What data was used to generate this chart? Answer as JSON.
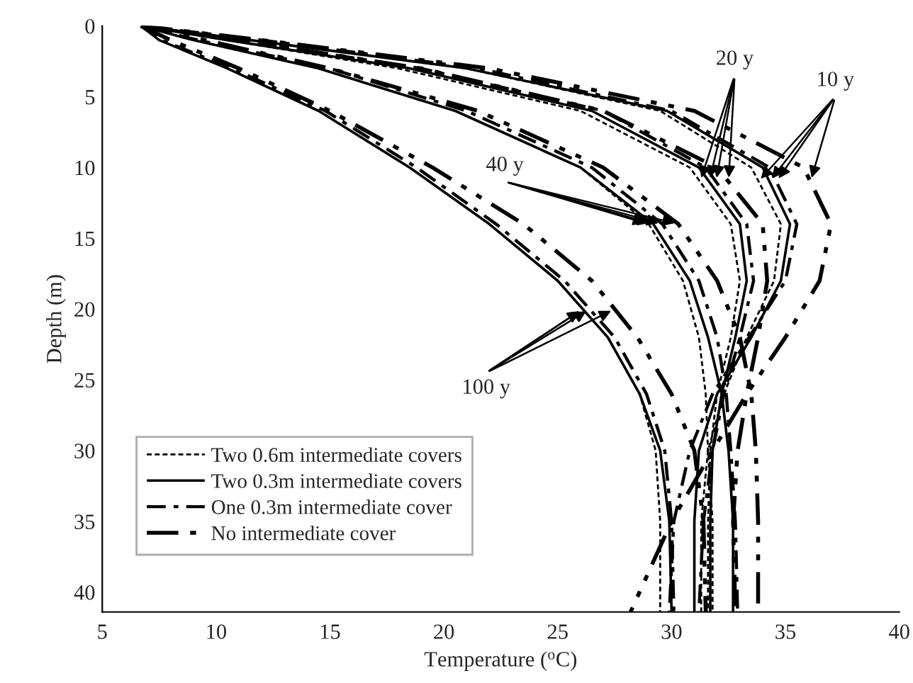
{
  "chart_data": {
    "type": "line",
    "xlabel": "Temperature ($^{o}$C)",
    "ylabel": "Depth (m)",
    "xlim": [
      5,
      40
    ],
    "xticks": [
      5,
      10,
      15,
      20,
      25,
      30,
      35,
      40
    ],
    "ylim": [
      41.4,
      0
    ],
    "yticks": [
      0,
      5,
      10,
      15,
      20,
      25,
      30,
      35,
      40
    ],
    "grid": false,
    "legend": "bottom left",
    "marker": "none",
    "series": [
      {
        "name": "Two 0.6m intermediate covers",
        "color": "#000000",
        "line_style": "dashed",
        "x": [
          6.7,
          11.5,
          21,
          29.5,
          33.5,
          34.8,
          34.5,
          33.3,
          32.3,
          31.6,
          31.3,
          31.3
        ],
        "values": [
          0,
          1,
          3,
          6,
          10,
          14,
          18,
          22,
          26,
          30,
          35,
          41.4
        ]
      },
      {
        "color": "#000000",
        "line_style": "dashed",
        "x": [
          6.7,
          10.5,
          18,
          26,
          30.8,
          32.6,
          33.0,
          32.6,
          32.0,
          31.7,
          31.6,
          31.6
        ],
        "values": [
          0,
          1,
          3,
          6,
          10,
          14,
          18,
          22,
          26,
          30,
          35,
          41.4
        ]
      },
      {
        "color": "#000000",
        "line_style": "dashed",
        "x": [
          6.7,
          9,
          14.5,
          20.5,
          26,
          29.0,
          30.5,
          31.2,
          31.5,
          31.6,
          31.8,
          31.8
        ],
        "values": [
          0,
          1,
          3,
          6,
          10,
          14,
          18,
          22,
          26,
          30,
          35,
          41.4
        ]
      },
      {
        "color": "#000000",
        "line_style": "dashed",
        "x": [
          6.7,
          7.5,
          10.5,
          14.5,
          18.5,
          22,
          25,
          27.2,
          28.6,
          29.3,
          29.5,
          29.5
        ],
        "values": [
          0,
          1,
          3,
          6,
          10,
          14,
          18,
          22,
          26,
          30,
          35,
          41.4
        ]
      },
      {
        "name": "Two 0.3m intermediate covers",
        "color": "#000000",
        "line_style": "solid",
        "x": [
          6.7,
          11.5,
          21,
          29.8,
          34,
          35.2,
          34.8,
          33.5,
          32.0,
          31.2,
          31.0,
          31.0
        ],
        "values": [
          0,
          1,
          3,
          6,
          10,
          14,
          18,
          22,
          26,
          30,
          35,
          41.4
        ]
      },
      {
        "color": "#000000",
        "line_style": "solid",
        "x": [
          6.7,
          10.5,
          18.5,
          26.5,
          31.2,
          33.0,
          33.3,
          32.8,
          32.2,
          31.8,
          31.7,
          31.7
        ],
        "values": [
          0,
          1,
          3,
          6,
          10,
          14,
          18,
          22,
          26,
          30,
          35,
          41.4
        ]
      },
      {
        "color": "#000000",
        "line_style": "solid",
        "x": [
          6.7,
          9,
          14.5,
          20.5,
          26,
          29.2,
          30.8,
          31.6,
          32.2,
          32.5,
          32.7,
          32.7
        ],
        "values": [
          0,
          1,
          3,
          6,
          10,
          14,
          18,
          22,
          26,
          30,
          35,
          41.4
        ]
      },
      {
        "color": "#000000",
        "line_style": "solid",
        "x": [
          6.7,
          7.5,
          10.5,
          14.5,
          18.5,
          22,
          25,
          27.2,
          28.6,
          29.5,
          29.9,
          30.0
        ],
        "values": [
          0,
          1,
          3,
          6,
          10,
          14,
          18,
          22,
          26,
          30,
          35,
          41.4
        ]
      },
      {
        "name": "One 0.3m intermediate cover",
        "color": "#000000",
        "line_style": "dashdot",
        "x": [
          6.7,
          12,
          21.5,
          30,
          34.3,
          35.5,
          35.0,
          33.4,
          31.8,
          30.8,
          30.1,
          29.9
        ],
        "values": [
          0,
          1,
          3,
          6,
          10,
          14,
          18,
          22,
          26,
          30,
          35,
          41.4
        ]
      },
      {
        "color": "#000000",
        "line_style": "dashdot",
        "x": [
          6.7,
          11,
          19,
          27,
          31.5,
          33.3,
          33.6,
          33.0,
          32.3,
          31.8,
          31.4,
          31.2
        ],
        "values": [
          0,
          1,
          3,
          6,
          10,
          14,
          18,
          22,
          26,
          30,
          35,
          41.4
        ]
      },
      {
        "color": "#000000",
        "line_style": "dashdot",
        "x": [
          6.7,
          9.2,
          15,
          21,
          26.5,
          29.6,
          31.2,
          32,
          32.4,
          32.6,
          32.8,
          32.9
        ],
        "values": [
          0,
          1,
          3,
          6,
          10,
          14,
          18,
          22,
          26,
          30,
          35,
          41.4
        ]
      },
      {
        "color": "#000000",
        "line_style": "dashdot",
        "x": [
          6.7,
          7.6,
          10.7,
          14.8,
          18.8,
          22.3,
          25.3,
          27.5,
          28.9,
          29.7,
          30.0,
          30.1
        ],
        "values": [
          0,
          1,
          3,
          6,
          10,
          14,
          18,
          22,
          26,
          30,
          35,
          41.4
        ]
      },
      {
        "name": "No intermediate cover",
        "color": "#000000",
        "line_style": "dashdotdot",
        "x": [
          6.7,
          12,
          22,
          31,
          35.8,
          37.0,
          36.5,
          35.0,
          33.3,
          31.8,
          30.0,
          28.2
        ],
        "values": [
          0,
          1,
          3,
          6,
          10,
          14,
          18,
          22,
          26,
          30,
          35,
          41.4
        ]
      },
      {
        "color": "#000000",
        "line_style": "dashdotdot",
        "x": [
          6.7,
          11,
          19,
          27,
          32.0,
          34.0,
          34.2,
          33.8,
          33.3,
          32.9,
          32.7,
          32.8
        ],
        "values": [
          0,
          1,
          3,
          6,
          10,
          14,
          18,
          22,
          26,
          30,
          35,
          41.4
        ]
      },
      {
        "color": "#000000",
        "line_style": "dashdotdot",
        "x": [
          6.7,
          9.5,
          15,
          21.5,
          27,
          30.3,
          32.0,
          33.0,
          33.5,
          33.7,
          33.8,
          33.8
        ],
        "values": [
          0,
          1,
          3,
          6,
          10,
          14,
          18,
          22,
          26,
          30,
          35,
          41.4
        ]
      },
      {
        "color": "#000000",
        "line_style": "dashdotdot",
        "x": [
          6.7,
          8,
          11,
          15,
          19.5,
          23.5,
          26.5,
          28.5,
          30,
          31,
          31.4,
          31.5
        ],
        "values": [
          0,
          1,
          3,
          6,
          10,
          14,
          18,
          22,
          26,
          30,
          35,
          41.4
        ]
      }
    ],
    "annotations": [
      {
        "text": "10 y",
        "x": 33.8,
        "y": 11
      },
      {
        "text": "20 y",
        "x": 31.25,
        "y": 11
      },
      {
        "text": "40 y",
        "x": 29.0,
        "y": 14
      },
      {
        "text": "100 y",
        "x": 26.1,
        "y": 20
      }
    ]
  }
}
